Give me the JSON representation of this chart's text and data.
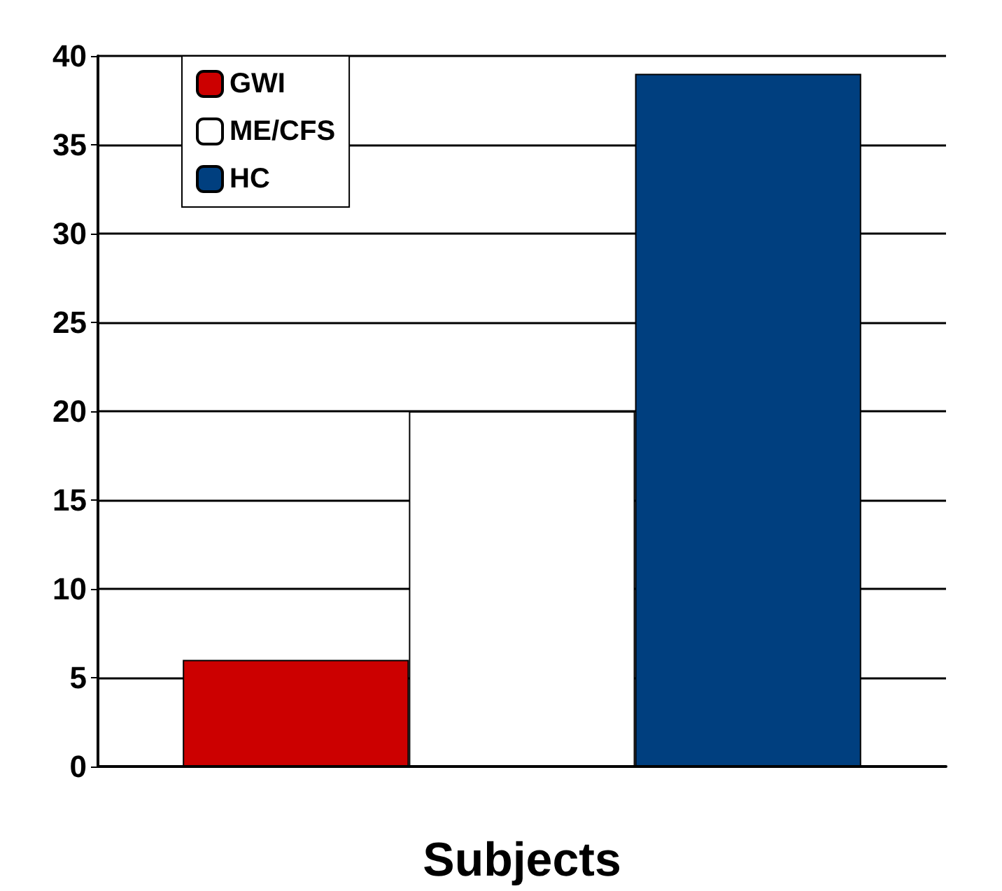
{
  "chart_data": {
    "type": "bar",
    "xlabel": "Subjects",
    "categories": [
      null
    ],
    "series": [
      {
        "name": "GWI",
        "color": "#cc0000",
        "values": [
          6
        ]
      },
      {
        "name": "ME/CFS",
        "color": "#ffffff",
        "values": [
          20
        ]
      },
      {
        "name": "HC",
        "color": "#003f7f",
        "values": [
          39
        ]
      }
    ],
    "ylim": [
      0,
      40
    ],
    "yticks": [
      0,
      5,
      10,
      15,
      20,
      25,
      30,
      35,
      40
    ],
    "grid": "y",
    "legend": "top left"
  }
}
